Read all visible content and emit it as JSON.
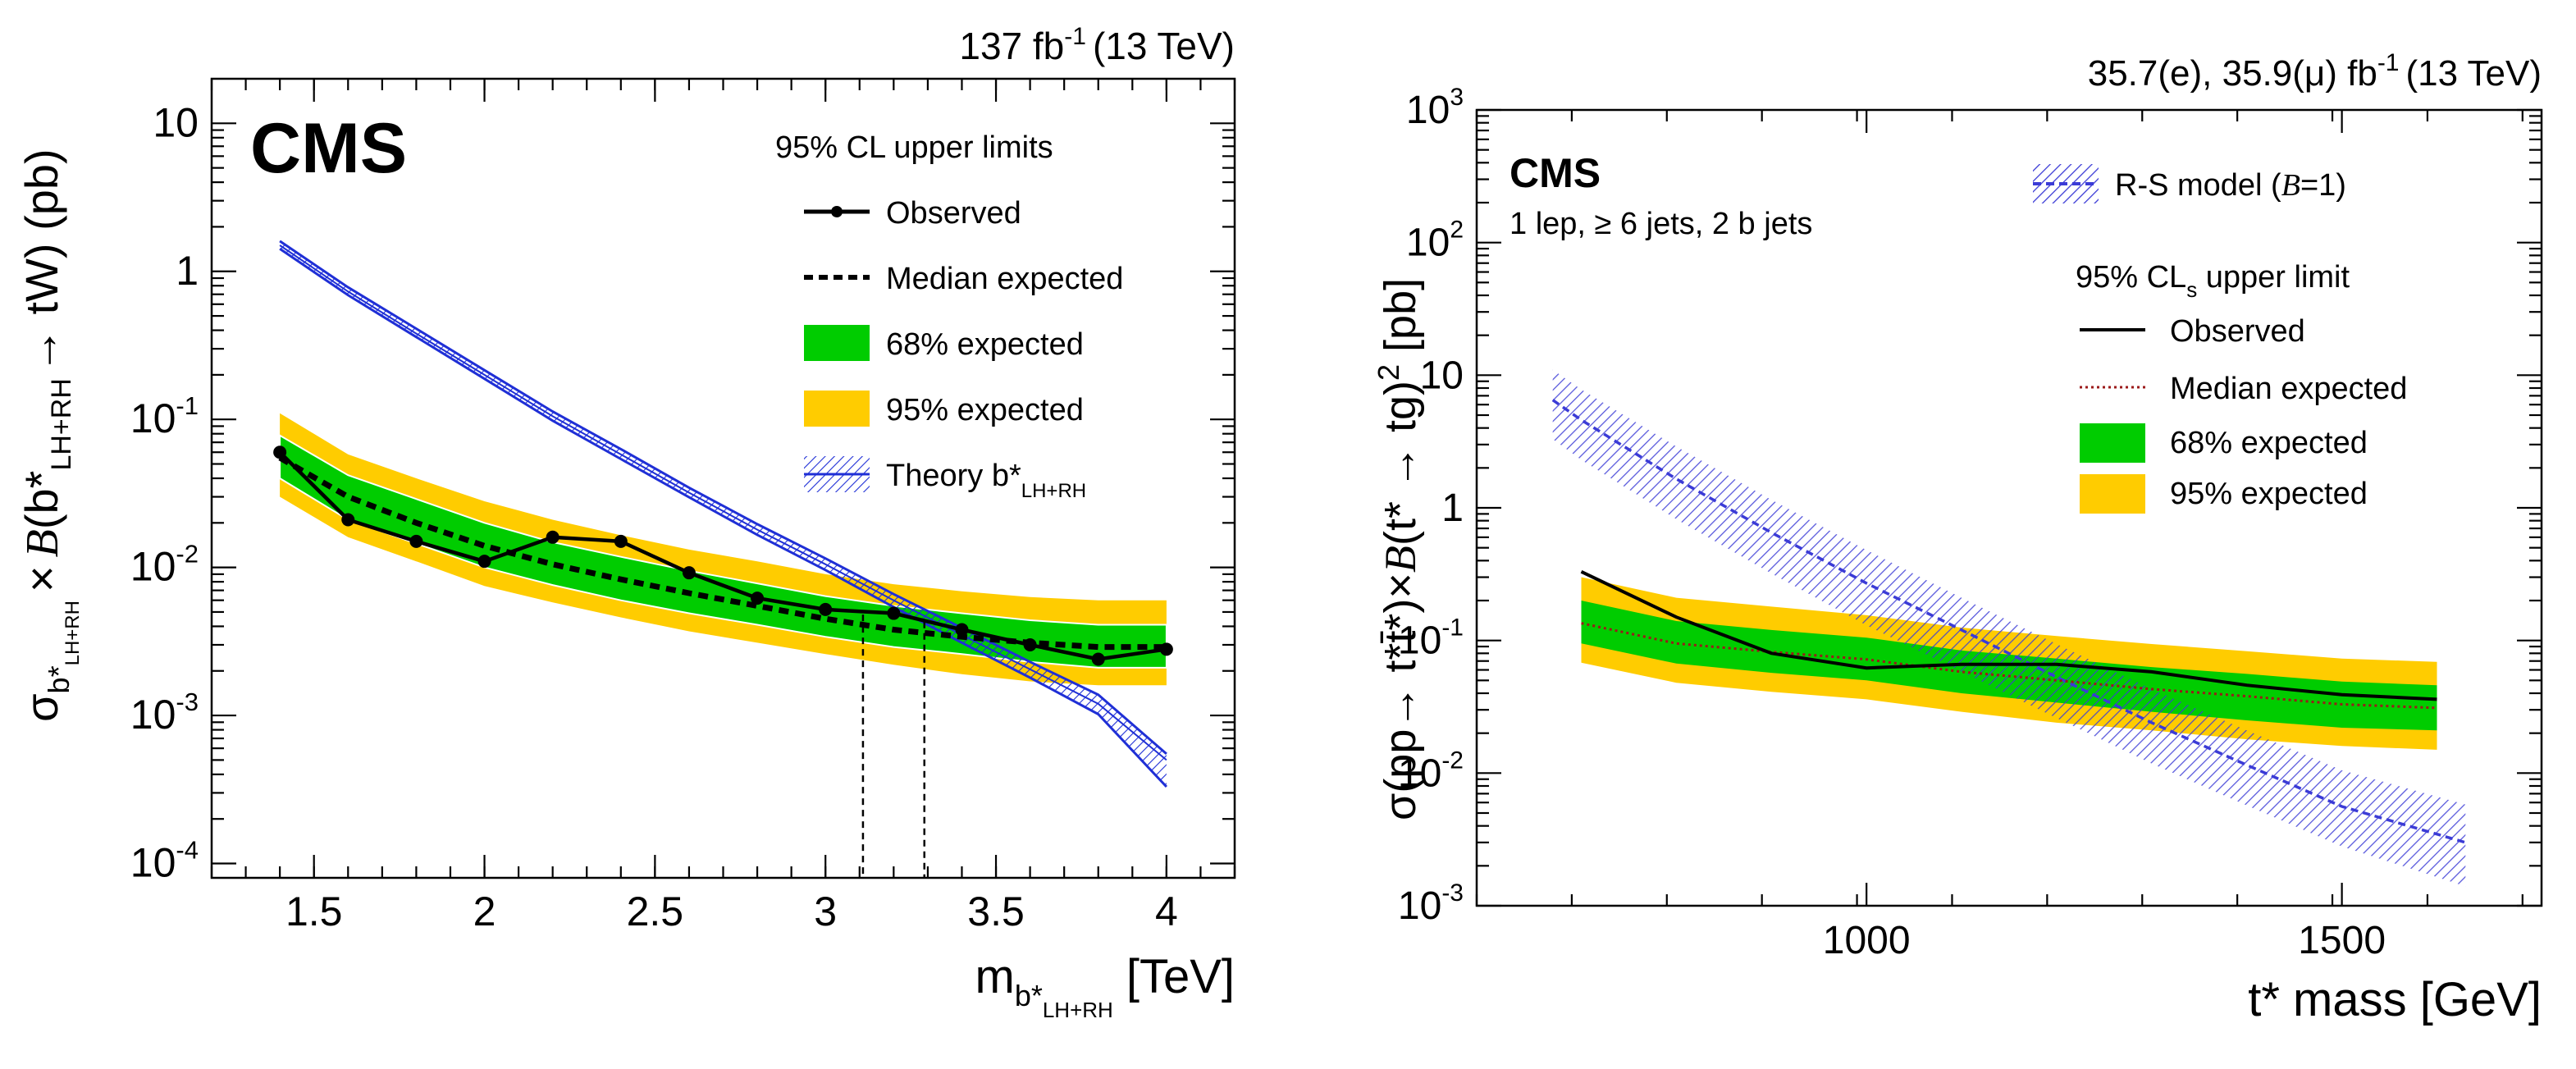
{
  "colors": {
    "green_band": "#00cc00",
    "yellow_band": "#ffcc00",
    "theory_blue": "#1f2fd6",
    "rs_blue": "#3b3bd6",
    "median_red": "#9b1a1a",
    "black": "#000000"
  },
  "chart_data": [
    {
      "type": "line",
      "scale": "log-y",
      "lumi_label": "137 fb",
      "lumi_exp": "-1",
      "energy_label": "(13 TeV)",
      "experiment": "CMS",
      "xlabel_main": "m",
      "xlabel_sub_b": "b*",
      "xlabel_sub_lh": "LH+RH",
      "xlabel_unit": "[TeV]",
      "ylabel_sigma": "σ",
      "ylabel_sub": "b*",
      "ylabel_subsub": "LH+RH",
      "ylabel_times": "×",
      "ylabel_B": "B",
      "ylabel_open": "(b*",
      "ylabel_decay_sub": "LH+RH",
      "ylabel_arrow": "→ tW) (pb)",
      "xlim": [
        1.2,
        4.2
      ],
      "ylim": [
        8e-05,
        20
      ],
      "xticks": [
        1.5,
        2,
        2.5,
        3,
        3.5,
        4
      ],
      "xtick_labels": [
        "1.5",
        "2",
        "2.5",
        "3",
        "3.5",
        "4"
      ],
      "yticks": [
        0.0001,
        0.001,
        0.01,
        0.1,
        1,
        10
      ],
      "ytick_labels": [
        {
          "base": "10",
          "exp": "-4"
        },
        {
          "base": "10",
          "exp": "-3"
        },
        {
          "base": "10",
          "exp": "-2"
        },
        {
          "base": "10",
          "exp": "-1"
        },
        {
          "base": "1",
          "exp": ""
        },
        {
          "base": "10",
          "exp": ""
        }
      ],
      "legend_title": "95% CL upper limits",
      "legend": {
        "observed": "Observed",
        "median": "Median expected",
        "band68": "68% expected",
        "band95": "95% expected",
        "theory": "Theory b*",
        "theory_sub": "LH+RH"
      },
      "x": [
        1.4,
        1.6,
        1.8,
        2.0,
        2.2,
        2.4,
        2.6,
        2.8,
        3.0,
        3.2,
        3.4,
        3.6,
        3.8,
        4.0
      ],
      "observed": [
        0.06,
        0.021,
        0.015,
        0.011,
        0.016,
        0.015,
        0.0092,
        0.0062,
        0.0052,
        0.0049,
        0.0038,
        0.003,
        0.0024,
        0.0028
      ],
      "median": [
        0.055,
        0.03,
        0.02,
        0.014,
        0.0105,
        0.0083,
        0.0067,
        0.0055,
        0.0045,
        0.0038,
        0.0034,
        0.0031,
        0.0029,
        0.0029
      ],
      "band68_lo": [
        0.04,
        0.021,
        0.0145,
        0.01,
        0.0076,
        0.006,
        0.0049,
        0.0041,
        0.0034,
        0.0029,
        0.0026,
        0.0023,
        0.0021,
        0.0021
      ],
      "band68_hi": [
        0.078,
        0.042,
        0.029,
        0.02,
        0.0148,
        0.0118,
        0.0095,
        0.0078,
        0.0064,
        0.0055,
        0.0049,
        0.0044,
        0.0041,
        0.0041
      ],
      "band95_lo": [
        0.03,
        0.016,
        0.011,
        0.0075,
        0.0058,
        0.0046,
        0.0037,
        0.0031,
        0.0026,
        0.0022,
        0.0019,
        0.0017,
        0.0016,
        0.0016
      ],
      "band95_hi": [
        0.11,
        0.058,
        0.04,
        0.028,
        0.021,
        0.0165,
        0.0132,
        0.011,
        0.009,
        0.0077,
        0.0069,
        0.0063,
        0.006,
        0.006
      ],
      "theory_x": [
        1.4,
        1.6,
        1.8,
        2.0,
        2.2,
        2.4,
        2.6,
        2.8,
        3.0,
        3.2,
        3.4,
        3.6,
        3.8,
        4.0
      ],
      "theory_central": [
        1.5,
        0.73,
        0.38,
        0.2,
        0.105,
        0.058,
        0.032,
        0.018,
        0.0105,
        0.006,
        0.0035,
        0.00205,
        0.0012,
        0.0005
      ],
      "theory_lo": [
        1.42,
        0.69,
        0.36,
        0.188,
        0.098,
        0.054,
        0.0298,
        0.0166,
        0.0096,
        0.0054,
        0.0031,
        0.0018,
        0.00102,
        0.00033
      ],
      "theory_hi": [
        1.6,
        0.78,
        0.41,
        0.215,
        0.113,
        0.063,
        0.0346,
        0.0196,
        0.0115,
        0.0066,
        0.0039,
        0.0023,
        0.00138,
        0.00055
      ],
      "exclusion_lines": [
        {
          "x": 3.11,
          "y_top": 0.0048
        },
        {
          "x": 3.29,
          "y_top": 0.0043
        }
      ]
    },
    {
      "type": "line",
      "scale": "log-y",
      "lumi_label": "35.7(e), 35.9(μ) fb",
      "lumi_exp": "-1",
      "energy_label": "(13 TeV)",
      "experiment": "CMS",
      "selection": "1 lep, ≥ 6 jets, 2 b jets",
      "xlabel": "t* mass [GeV]",
      "ylabel_sigma": "σ(pp→ t*",
      "ylabel_tbar": "t̄*",
      "ylabel_mid": ")×",
      "ylabel_B": "B",
      "ylabel_end": "(t* → tg)",
      "ylabel_sq": "2",
      "ylabel_unit": " [pb]",
      "xlim": [
        590,
        1710
      ],
      "ylim": [
        0.001,
        1000
      ],
      "xticks": [
        1000,
        1500
      ],
      "xtick_labels": [
        "1000",
        "1500"
      ],
      "yticks": [
        0.001,
        0.01,
        0.1,
        1,
        10,
        100,
        1000
      ],
      "ytick_labels": [
        {
          "base": "10",
          "exp": "-3"
        },
        {
          "base": "10",
          "exp": "-2"
        },
        {
          "base": "10",
          "exp": "-1"
        },
        {
          "base": "1",
          "exp": ""
        },
        {
          "base": "10",
          "exp": ""
        },
        {
          "base": "10",
          "exp": "2"
        },
        {
          "base": "10",
          "exp": "3"
        }
      ],
      "legend": {
        "rs_model": "R-S model (",
        "rs_B": "B",
        "rs_end": "=1)",
        "title_main": "95% CL",
        "title_sub": "s",
        "title_end": " upper limit",
        "observed": "Observed",
        "median": "Median expected",
        "band68": "68% expected",
        "band95": "95% expected"
      },
      "x": [
        700,
        800,
        900,
        1000,
        1100,
        1200,
        1300,
        1400,
        1500,
        1600
      ],
      "observed": [
        0.33,
        0.15,
        0.08,
        0.062,
        0.066,
        0.066,
        0.058,
        0.046,
        0.039,
        0.036
      ],
      "median": [
        0.135,
        0.095,
        0.082,
        0.072,
        0.058,
        0.05,
        0.043,
        0.038,
        0.033,
        0.031
      ],
      "band68_lo": [
        0.095,
        0.067,
        0.057,
        0.05,
        0.04,
        0.034,
        0.029,
        0.025,
        0.022,
        0.021
      ],
      "band68_hi": [
        0.2,
        0.14,
        0.12,
        0.105,
        0.084,
        0.073,
        0.063,
        0.056,
        0.049,
        0.046
      ],
      "band95_lo": [
        0.068,
        0.048,
        0.041,
        0.036,
        0.029,
        0.024,
        0.021,
        0.018,
        0.016,
        0.015
      ],
      "band95_hi": [
        0.3,
        0.21,
        0.18,
        0.155,
        0.125,
        0.108,
        0.094,
        0.083,
        0.073,
        0.069
      ],
      "rs_x": [
        670,
        700,
        800,
        900,
        1000,
        1100,
        1200,
        1300,
        1400,
        1500,
        1630
      ],
      "rs_central": [
        6.5,
        4.6,
        1.65,
        0.65,
        0.27,
        0.12,
        0.053,
        0.024,
        0.0115,
        0.0056,
        0.003
      ],
      "rs_lo": [
        3.3,
        2.3,
        0.82,
        0.32,
        0.13,
        0.058,
        0.026,
        0.0118,
        0.0057,
        0.0028,
        0.0014
      ],
      "rs_hi": [
        11,
        7.8,
        2.9,
        1.15,
        0.48,
        0.21,
        0.094,
        0.043,
        0.021,
        0.0105,
        0.0058
      ]
    }
  ]
}
